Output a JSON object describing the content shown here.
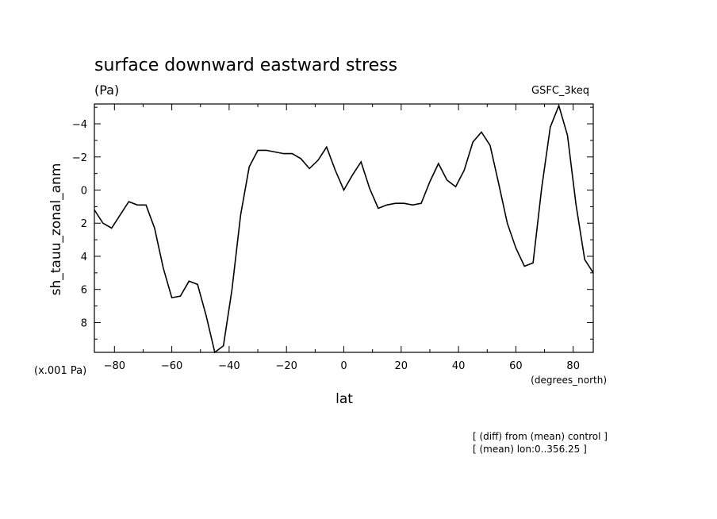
{
  "chart_data": {
    "type": "line",
    "title": "surface downward eastward stress",
    "units_label": "(Pa)",
    "model_label": "GSFC_3keq",
    "ylabel": "sh_tauu_zonal_anm",
    "xlabel": "lat",
    "x_units": "(degrees_north)",
    "y_scale_note": "(x.001 Pa)",
    "notes": [
      "[ (diff) from (mean) control ]",
      "[ (mean) lon:0..356.25 ]"
    ],
    "xlim": [
      -87,
      87
    ],
    "ylim": [
      9.8,
      -5.2
    ],
    "y_inverted": true,
    "x_ticks": [
      -80,
      -60,
      -40,
      -20,
      0,
      20,
      40,
      60,
      80
    ],
    "y_ticks": [
      -4,
      -2,
      0,
      2,
      4,
      6,
      8
    ],
    "grid": false,
    "series": [
      {
        "x": [
          -87,
          -84,
          -81,
          -78,
          -75,
          -72,
          -69,
          -66,
          -63,
          -60,
          -57,
          -54,
          -51,
          -48,
          -45,
          -42,
          -39,
          -36,
          -33,
          -30,
          -27,
          -24,
          -21,
          -18,
          -15,
          -12,
          -9,
          -6,
          -3,
          0,
          3,
          6,
          9,
          12,
          15,
          18,
          21,
          24,
          27,
          30,
          33,
          36,
          39,
          42,
          45,
          48,
          51,
          54,
          57,
          60,
          63,
          66,
          69,
          72,
          75,
          78,
          81,
          84,
          87
        ],
        "values": [
          1.2,
          2.0,
          2.3,
          1.5,
          0.7,
          0.9,
          0.9,
          2.3,
          4.7,
          6.5,
          6.4,
          5.5,
          5.7,
          7.6,
          9.8,
          9.4,
          6.0,
          1.5,
          -1.4,
          -2.4,
          -2.4,
          -2.3,
          -2.2,
          -2.2,
          -1.9,
          -1.3,
          -1.8,
          -2.6,
          -1.2,
          0.0,
          -0.9,
          -1.7,
          -0.1,
          1.1,
          0.9,
          0.8,
          0.8,
          0.9,
          0.8,
          -0.5,
          -1.6,
          -0.6,
          -0.2,
          -1.2,
          -2.9,
          -3.5,
          -2.7,
          -0.4,
          2.0,
          3.5,
          4.6,
          4.4,
          -0.1,
          -3.8,
          -5.1,
          -3.3,
          0.9,
          4.2,
          5.0
        ]
      }
    ]
  }
}
